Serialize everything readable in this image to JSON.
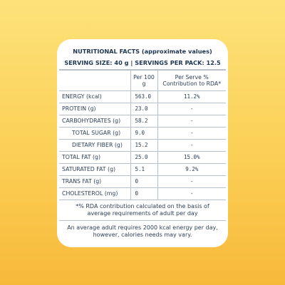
{
  "panel": {
    "title": "NUTRITIONAL FACTS (approximate values)",
    "serving": "SERVING SIZE: 40 g | SERVINGS PER PACK: 12.5"
  },
  "table": {
    "headers": [
      "",
      "Per 100 g",
      "Per Serve % Contribution to RDA*"
    ],
    "rows": [
      {
        "nutrient": "ENERGY (kcal)",
        "per100": "563.0",
        "rda": "11.2%",
        "sub": false
      },
      {
        "nutrient": "PROTEIN (g)",
        "per100": "23.0",
        "rda": "-",
        "sub": false
      },
      {
        "nutrient": "CARBOHYDRATES (g)",
        "per100": "58.2",
        "rda": "-",
        "sub": false
      },
      {
        "nutrient": "TOTAL  SUGAR (g)",
        "per100": "9.0",
        "rda": "-",
        "sub": true
      },
      {
        "nutrient": "DIETARY FIBER (g)",
        "per100": "15.2",
        "rda": "-",
        "sub": true
      },
      {
        "nutrient": "TOTAL FAT (g)",
        "per100": "25.0",
        "rda": "15.0%",
        "sub": false
      },
      {
        "nutrient": "SATURATED FAT (g)",
        "per100": "5.1",
        "rda": "9.2%",
        "sub": false
      },
      {
        "nutrient": "TRANS FAT (g)",
        "per100": "0",
        "rda": "-",
        "sub": false
      },
      {
        "nutrient": "CHOLESTEROL (mg)",
        "per100": "0",
        "rda": "-",
        "sub": false
      }
    ]
  },
  "notes": {
    "rda_note": "*% RDA contribution calculated on the basis of average requirements of adult per day",
    "energy_note": "An average adult requires 2000 kcal energy per day, however, calories needs may vary."
  },
  "colors": {
    "background_top": "#fde27a",
    "background_bottom": "#f7b93a",
    "text": "#1f3552"
  }
}
